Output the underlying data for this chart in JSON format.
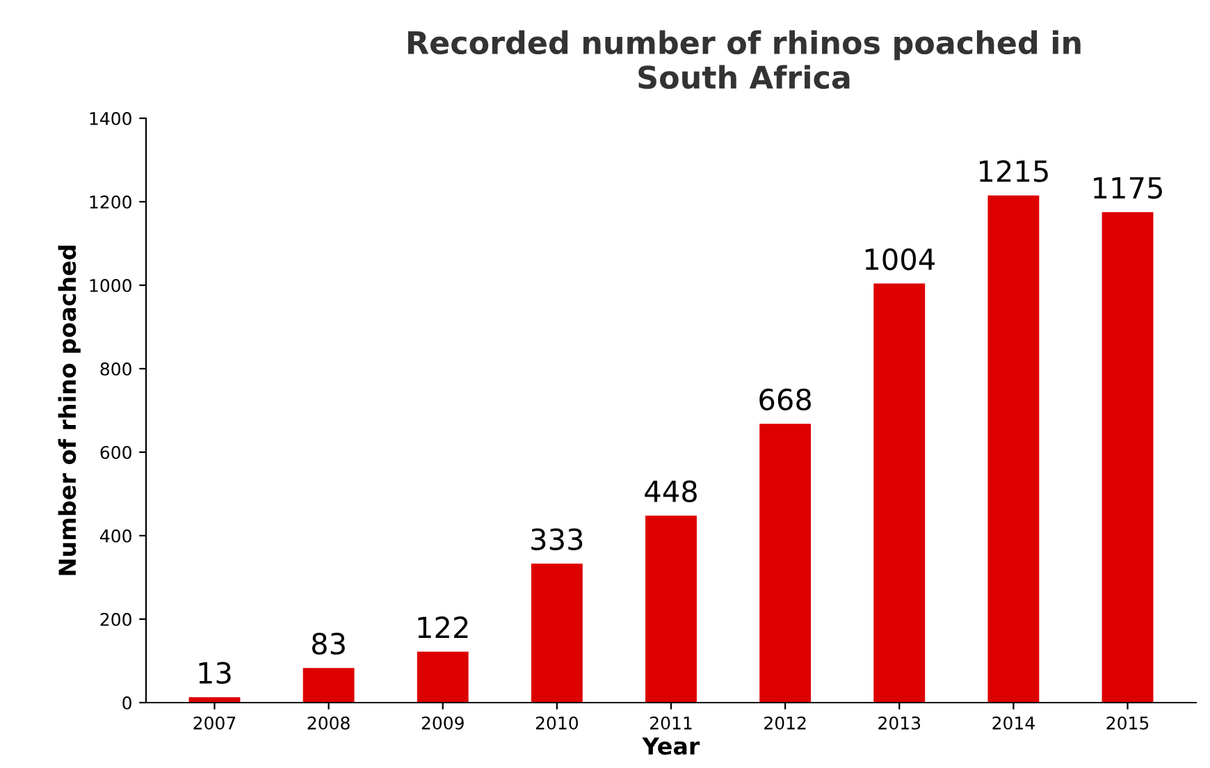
{
  "chart_data": {
    "type": "bar",
    "title": "Recorded number of rhinos poached in\nSouth Africa",
    "xlabel": "Year",
    "ylabel": "Number of rhino poached",
    "categories": [
      "2007",
      "2008",
      "2009",
      "2010",
      "2011",
      "2012",
      "2013",
      "2014",
      "2015"
    ],
    "values": [
      13,
      83,
      122,
      333,
      448,
      668,
      1004,
      1215,
      1175
    ],
    "color": "#dd0000",
    "ylim": [
      0,
      1400
    ],
    "yticks": [
      0,
      200,
      400,
      600,
      800,
      1000,
      1200,
      1400
    ],
    "grid": false,
    "data_labels": true
  }
}
